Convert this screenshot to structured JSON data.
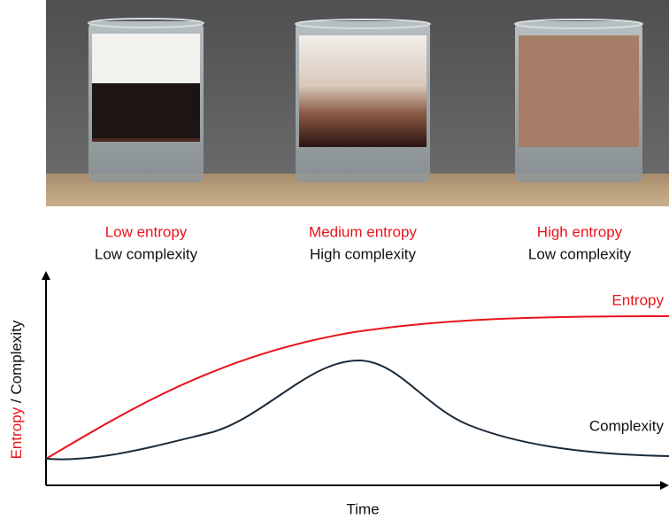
{
  "glasses": [
    {
      "entropy": "Low entropy",
      "complexity": "Low complexity"
    },
    {
      "entropy": "Medium entropy",
      "complexity": "High complexity"
    },
    {
      "entropy": "High entropy",
      "complexity": "Low complexity"
    }
  ],
  "chart": {
    "y_axis_label": {
      "entropy": "Entropy",
      "complexity": " / Complexity"
    },
    "x_axis_label": "Time",
    "curves": {
      "entropy": "Entropy",
      "complexity": "Complexity"
    }
  }
}
